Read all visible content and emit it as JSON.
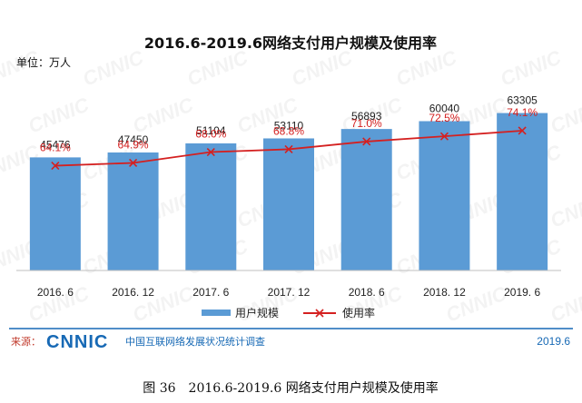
{
  "chart_data": {
    "type": "bar",
    "title": "2016.6-2019.6网络支付用户规模及使用率",
    "unit_label": "单位：万人",
    "categories": [
      "2016. 6",
      "2016. 12",
      "2017. 6",
      "2017. 12",
      "2018. 6",
      "2018. 12",
      "2019. 6"
    ],
    "series": [
      {
        "name": "用户规模",
        "kind": "bar",
        "color": "#5b9bd5",
        "values": [
          45476,
          47450,
          51104,
          53110,
          56893,
          60040,
          63305
        ],
        "labels": [
          "45476",
          "47450",
          "51104",
          "53110",
          "56893",
          "60040",
          "63305"
        ]
      },
      {
        "name": "使用率",
        "kind": "line",
        "color": "#d42020",
        "values": [
          64.1,
          64.9,
          68.0,
          68.8,
          71.0,
          72.5,
          74.1
        ],
        "labels": [
          "64.1%",
          "64.9%",
          "68.0%",
          "68.8%",
          "71.0%",
          "72.5%",
          "74.1%"
        ]
      }
    ],
    "ylim_bar": [
      0,
      100000
    ],
    "ylim_line": [
      0,
      100
    ],
    "grid": false,
    "legend_position": "bottom"
  },
  "footer": {
    "source_label": "来源：",
    "logo_text": "CNNIC",
    "org_name": "中国互联网络发展状况统计调查",
    "date": "2019.6"
  },
  "caption": "图 36　2016.6-2019.6 网络支付用户规模及使用率",
  "watermark": "CNNIC",
  "colors": {
    "bar": "#5b9bd5",
    "line": "#d42020",
    "brand": "#1769b5"
  }
}
